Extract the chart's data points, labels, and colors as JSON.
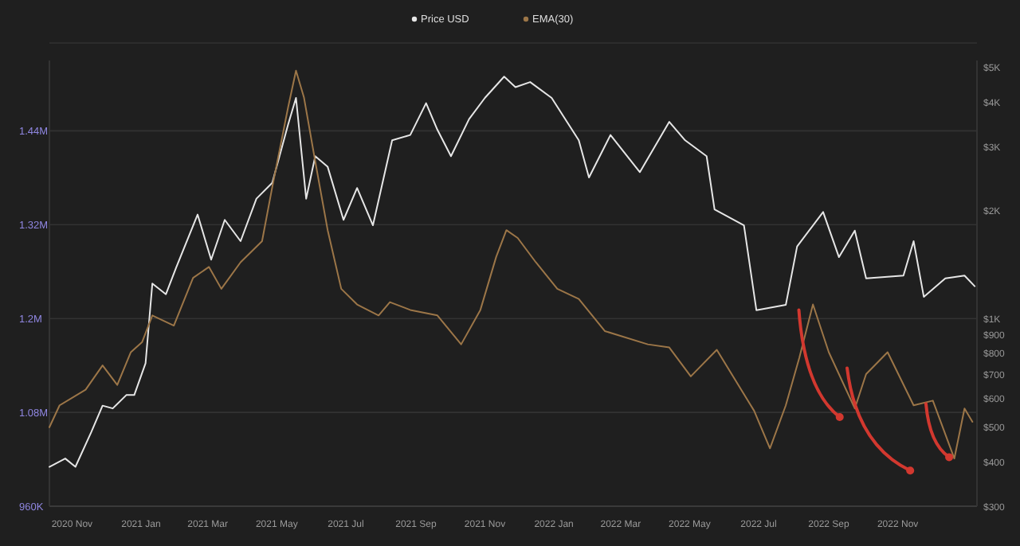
{
  "chart_data": {
    "type": "line",
    "legend": "top",
    "grid": "y",
    "line_style": "solid",
    "xlim": [
      "2020-10-12",
      "2023-01-10"
    ],
    "xticks": [
      {
        "value": "2020-11-01",
        "label": "2020 Nov"
      },
      {
        "value": "2021-01-01",
        "label": "2021 Jan"
      },
      {
        "value": "2021-03-01",
        "label": "2021 Mar"
      },
      {
        "value": "2021-05-01",
        "label": "2021 May"
      },
      {
        "value": "2021-07-01",
        "label": "2021 Jul"
      },
      {
        "value": "2021-09-01",
        "label": "2021 Sep"
      },
      {
        "value": "2021-11-01",
        "label": "2021 Nov"
      },
      {
        "value": "2022-01-01",
        "label": "2022 Jan"
      },
      {
        "value": "2022-03-01",
        "label": "2022 Mar"
      },
      {
        "value": "2022-05-01",
        "label": "2022 May"
      },
      {
        "value": "2022-07-01",
        "label": "2022 Jul"
      },
      {
        "value": "2022-09-01",
        "label": "2022 Sep"
      },
      {
        "value": "2022-11-01",
        "label": "2022 Nov"
      }
    ],
    "ylim": [
      960000,
      1530000
    ],
    "yticks": [
      {
        "value": 960000,
        "label": "960K"
      },
      {
        "value": 1080000,
        "label": "1.08M"
      },
      {
        "value": 1200000,
        "label": "1.2M"
      },
      {
        "value": 1320000,
        "label": "1.32M"
      },
      {
        "value": 1440000,
        "label": "1.44M"
      }
    ],
    "log": "y2",
    "y2lim": [
      300,
      5200
    ],
    "y2ticks": [
      {
        "value": 300,
        "label": "$300"
      },
      {
        "value": 400,
        "label": "$400"
      },
      {
        "value": 500,
        "label": "$500"
      },
      {
        "value": 600,
        "label": "$600"
      },
      {
        "value": 700,
        "label": "$700"
      },
      {
        "value": 800,
        "label": "$800"
      },
      {
        "value": 900,
        "label": "$900"
      },
      {
        "value": 1000,
        "label": "$1K"
      },
      {
        "value": 2000,
        "label": "$2K"
      },
      {
        "value": 3000,
        "label": "$3K"
      },
      {
        "value": 4000,
        "label": "$4K"
      },
      {
        "value": 5000,
        "label": "$5K"
      }
    ],
    "series": [
      {
        "name": "Price USD",
        "color": "#e6e6e6",
        "axis": "y2",
        "x": [
          "2020-10-12",
          "2020-10-26",
          "2020-11-04",
          "2020-11-18",
          "2020-11-28",
          "2020-12-07",
          "2020-12-19",
          "2020-12-26",
          "2021-01-05",
          "2021-01-11",
          "2021-01-23",
          "2021-02-01",
          "2021-02-20",
          "2021-03-04",
          "2021-03-16",
          "2021-03-30",
          "2021-04-13",
          "2021-04-27",
          "2021-05-11",
          "2021-05-18",
          "2021-05-27",
          "2021-06-04",
          "2021-06-15",
          "2021-06-29",
          "2021-07-11",
          "2021-07-25",
          "2021-08-11",
          "2021-08-27",
          "2021-09-10",
          "2021-09-20",
          "2021-10-02",
          "2021-10-18",
          "2021-11-01",
          "2021-11-18",
          "2021-11-28",
          "2021-12-11",
          "2021-12-30",
          "2022-01-23",
          "2022-02-01",
          "2022-02-20",
          "2022-03-18",
          "2022-04-13",
          "2022-04-27",
          "2022-05-16",
          "2022-05-23",
          "2022-06-18",
          "2022-06-29",
          "2022-07-25",
          "2022-08-04",
          "2022-08-27",
          "2022-09-10",
          "2022-09-24",
          "2022-10-04",
          "2022-11-06",
          "2022-11-15",
          "2022-11-24",
          "2022-12-13",
          "2022-12-30",
          "2023-01-08"
        ],
        "values": [
          386,
          407,
          386,
          482,
          571,
          561,
          611,
          611,
          749,
          1247,
          1165,
          1381,
          1940,
          1453,
          1875,
          1636,
          2147,
          2377,
          3452,
          4093,
          2147,
          2818,
          2633,
          1875,
          2299,
          1811,
          3120,
          3228,
          3958,
          3337,
          2818,
          3573,
          4093,
          4690,
          4383,
          4530,
          4093,
          3120,
          2459,
          3228,
          2545,
          3512,
          3120,
          2818,
          2005,
          1811,
          1052,
          1088,
          1582,
          1972,
          1477,
          1751,
          1290,
          1313,
          1636,
          1146,
          1290,
          1313,
          1226
        ]
      },
      {
        "name": "EMA(30)",
        "color": "#9c7648",
        "axis": "y",
        "x": [
          "2020-10-12",
          "2020-10-21",
          "2020-11-13",
          "2020-11-28",
          "2020-12-11",
          "2020-12-23",
          "2021-01-02",
          "2021-01-11",
          "2021-01-30",
          "2021-02-16",
          "2021-03-02",
          "2021-03-13",
          "2021-03-30",
          "2021-04-18",
          "2021-04-27",
          "2021-05-11",
          "2021-05-18",
          "2021-05-25",
          "2021-06-04",
          "2021-06-15",
          "2021-06-27",
          "2021-07-11",
          "2021-07-30",
          "2021-08-09",
          "2021-08-27",
          "2021-09-20",
          "2021-10-11",
          "2021-10-28",
          "2021-11-11",
          "2021-11-20",
          "2021-11-30",
          "2021-12-16",
          "2022-01-04",
          "2022-01-23",
          "2022-02-15",
          "2022-03-25",
          "2022-04-13",
          "2022-05-02",
          "2022-05-25",
          "2022-06-27",
          "2022-07-11",
          "2022-07-25",
          "2022-08-06",
          "2022-08-18",
          "2022-09-01",
          "2022-09-24",
          "2022-10-04",
          "2022-10-23",
          "2022-11-15",
          "2022-12-02",
          "2022-12-21",
          "2022-12-30",
          "2023-01-06"
        ],
        "values": [
          1061000,
          1089000,
          1109000,
          1140000,
          1115000,
          1157000,
          1170000,
          1204000,
          1191000,
          1252000,
          1266000,
          1238000,
          1272000,
          1299000,
          1368000,
          1470000,
          1517000,
          1483000,
          1401000,
          1313000,
          1238000,
          1218000,
          1204000,
          1221000,
          1211000,
          1204000,
          1167000,
          1211000,
          1279000,
          1313000,
          1303000,
          1272000,
          1238000,
          1225000,
          1184000,
          1167000,
          1163000,
          1126000,
          1160000,
          1082000,
          1034000,
          1089000,
          1150000,
          1218000,
          1157000,
          1085000,
          1129000,
          1157000,
          1089000,
          1095000,
          1021000,
          1085000,
          1068000
        ]
      }
    ]
  }
}
